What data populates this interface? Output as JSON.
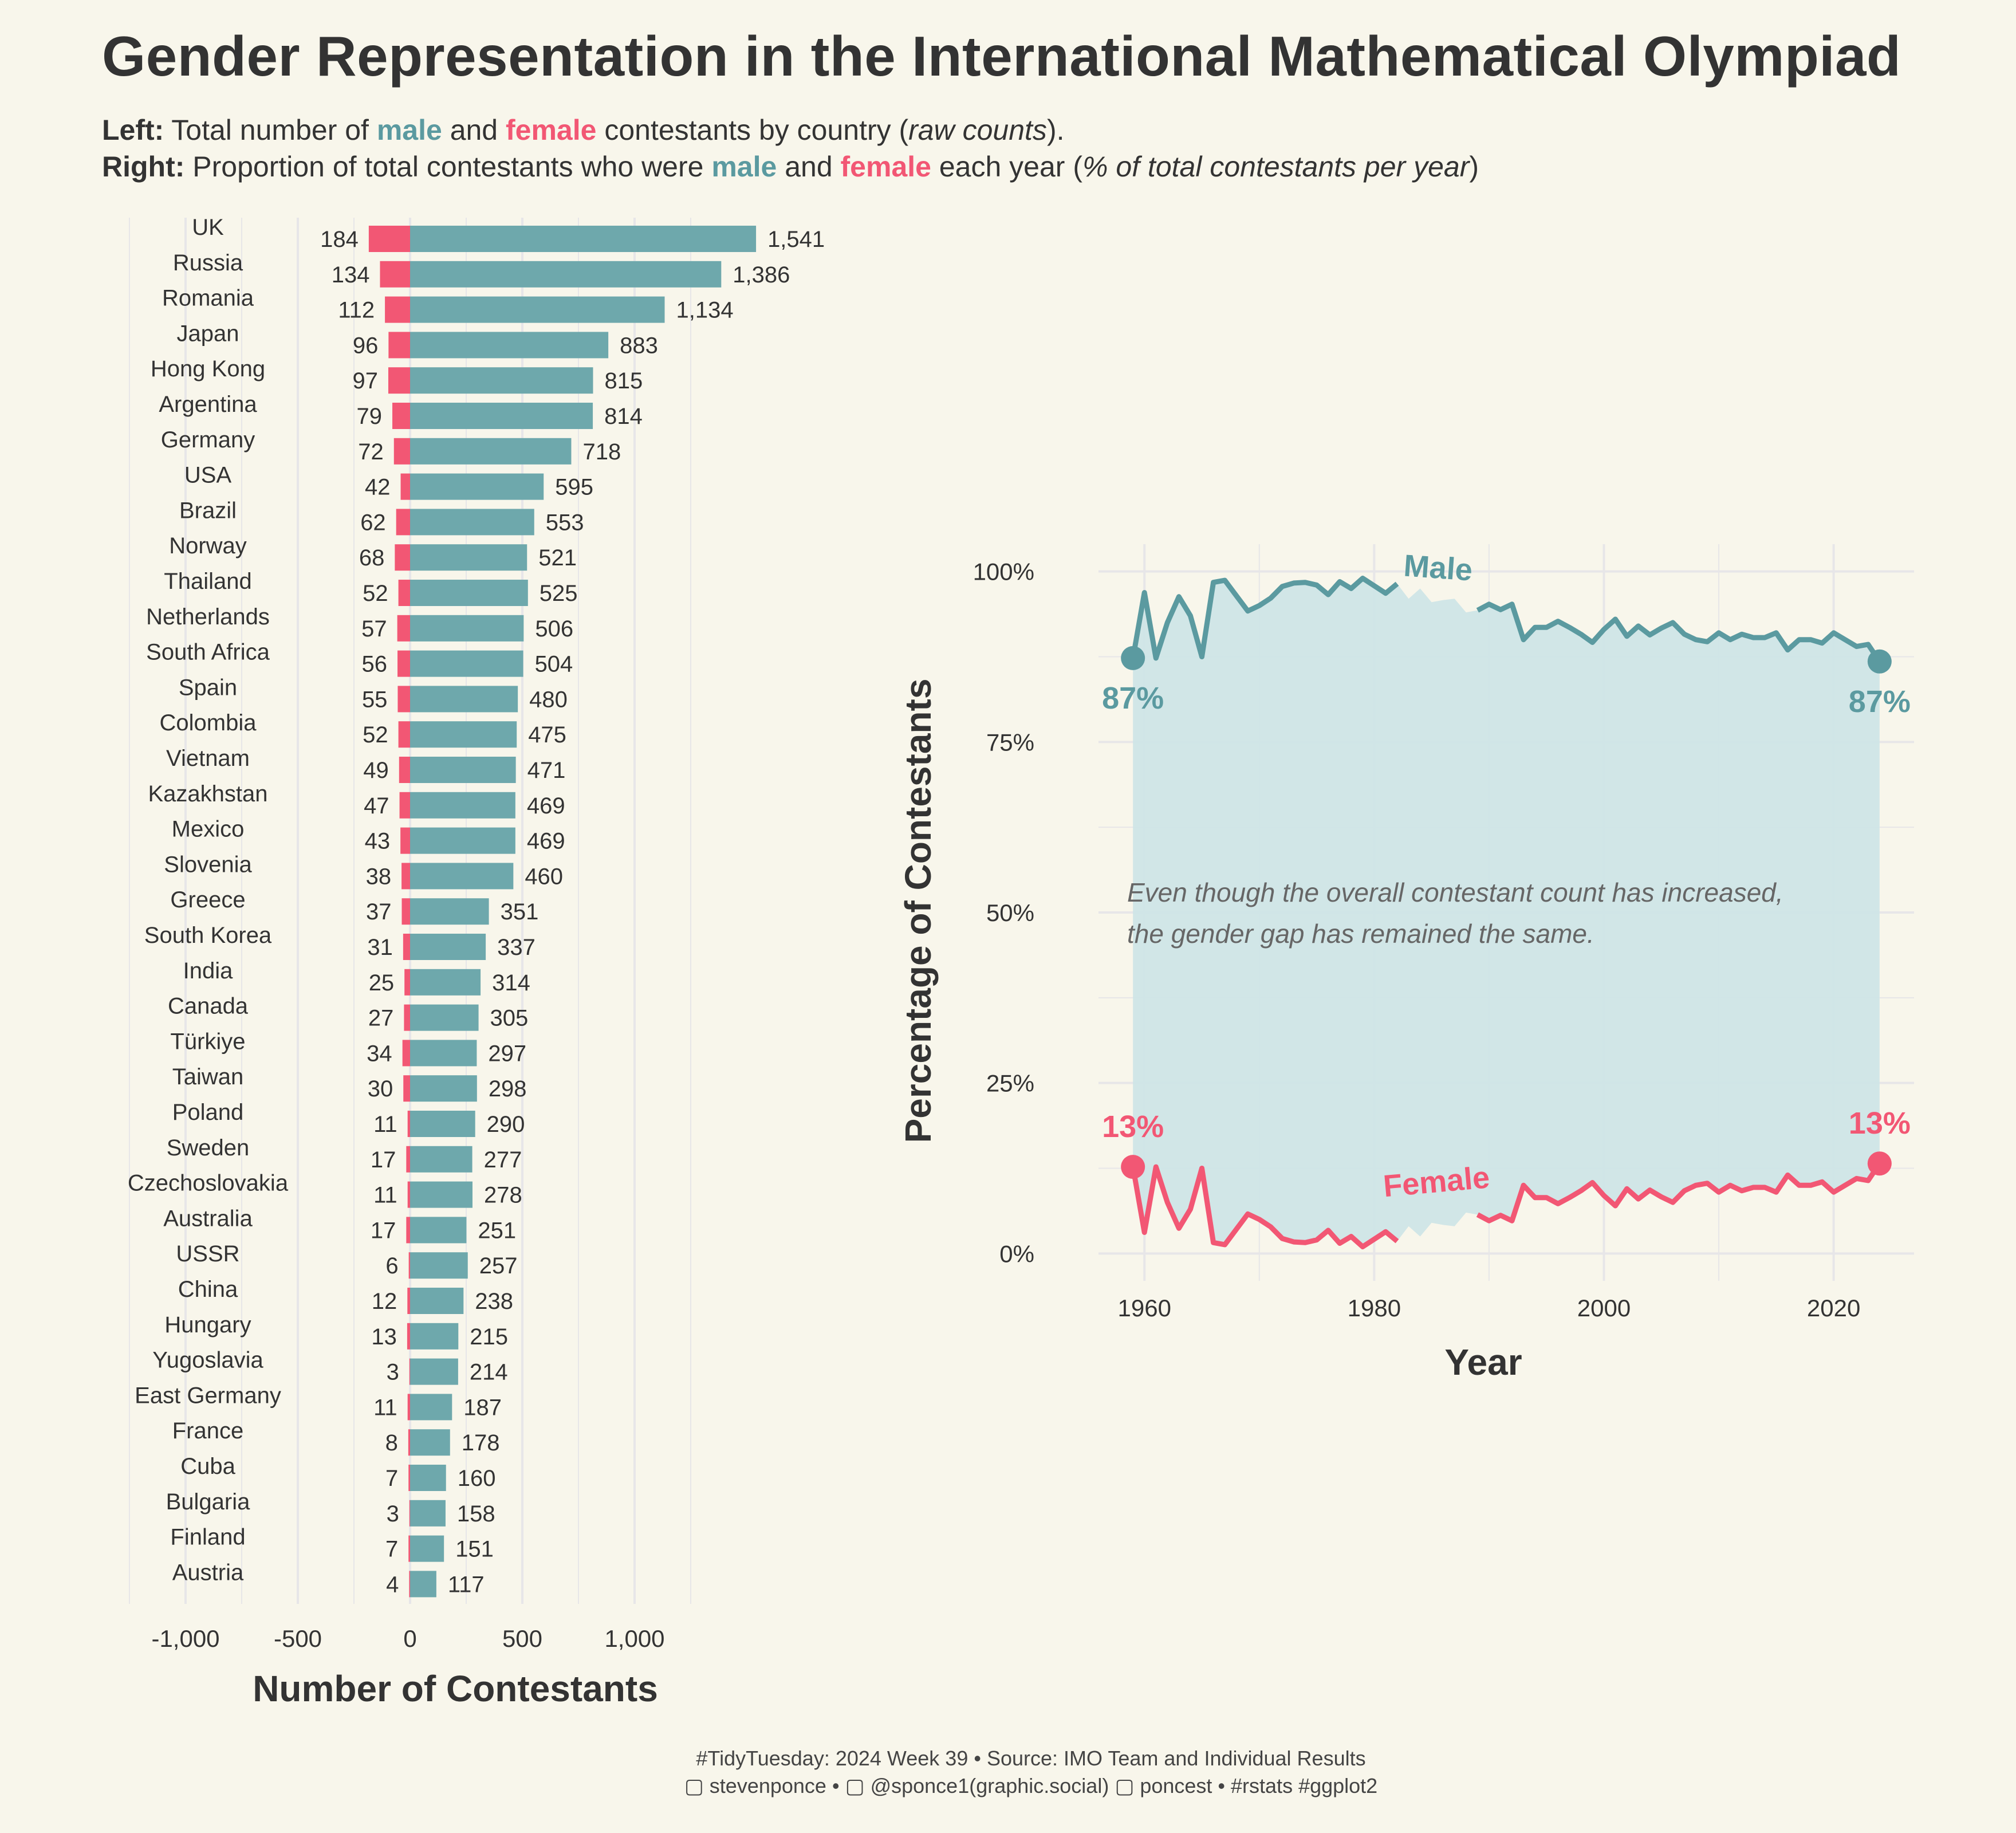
{
  "title": "Gender Representation in the International Mathematical Olympiad",
  "subtitle": {
    "left_label": "Left:",
    "left_pre": " Total number of ",
    "male_word": "male",
    "and_word": " and ",
    "female_word": "female",
    "left_mid": " contestants by country (",
    "left_italic": "raw counts",
    "left_end": ").",
    "right_label": "Right:",
    "right_pre": " Proportion of total contestants who were ",
    "right_mid": " each year (",
    "right_italic": "% of total contestants per year",
    "right_end": ")"
  },
  "caption": {
    "line1": "#TidyTuesday: 2024 Week 39 • Source: IMO Team and Individual Results",
    "line2": "▢ stevenponce • ▢ @sponce1(graphic.social) ▢ poncest • #rstats #ggplot2"
  },
  "colors": {
    "male": "#5b9aa0",
    "male_bar": "#6ea8ac",
    "female": "#f25774",
    "ribbon": "#cfe5e7",
    "grid": "#e7e6e8",
    "background": "#f8f6eb"
  },
  "chart_data": [
    {
      "type": "bar",
      "orientation": "horizontal diverging",
      "xlabel": "Number of Contestants",
      "x_ticks": [
        -1000,
        -500,
        0,
        500,
        1000
      ],
      "x_tick_labels": [
        "-1,000",
        "-500",
        "0",
        "500",
        "1,000"
      ],
      "xlim": [
        -1250,
        1500
      ],
      "categories": [
        "UK",
        "Russia",
        "Romania",
        "Japan",
        "Hong Kong",
        "Argentina",
        "Germany",
        "USA",
        "Brazil",
        "Norway",
        "Thailand",
        "Netherlands",
        "South Africa",
        "Spain",
        "Colombia",
        "Vietnam",
        "Kazakhstan",
        "Mexico",
        "Slovenia",
        "Greece",
        "South Korea",
        "India",
        "Canada",
        "Türkiye",
        "Taiwan",
        "Poland",
        "Sweden",
        "Czechoslovakia",
        "Australia",
        "USSR",
        "China",
        "Hungary",
        "Yugoslavia",
        "East Germany",
        "France",
        "Cuba",
        "Bulgaria",
        "Finland",
        "Austria"
      ],
      "series": [
        {
          "name": "male",
          "values": [
            1541,
            1386,
            1134,
            883,
            815,
            814,
            718,
            595,
            553,
            521,
            525,
            506,
            504,
            480,
            475,
            471,
            469,
            469,
            460,
            351,
            337,
            314,
            305,
            297,
            298,
            290,
            277,
            278,
            251,
            257,
            238,
            215,
            214,
            187,
            178,
            160,
            158,
            151,
            117
          ],
          "labels": [
            "1,541",
            "1,386",
            "1,134",
            "883",
            "815",
            "814",
            "718",
            "595",
            "553",
            "521",
            "525",
            "506",
            "504",
            "480",
            "475",
            "471",
            "469",
            "469",
            "460",
            "351",
            "337",
            "314",
            "305",
            "297",
            "298",
            "290",
            "277",
            "278",
            "251",
            "257",
            "238",
            "215",
            "214",
            "187",
            "178",
            "160",
            "158",
            "151",
            "117"
          ]
        },
        {
          "name": "female",
          "values": [
            184,
            134,
            112,
            96,
            97,
            79,
            72,
            42,
            62,
            68,
            52,
            57,
            56,
            55,
            52,
            49,
            47,
            43,
            38,
            37,
            31,
            25,
            27,
            34,
            30,
            11,
            17,
            11,
            17,
            6,
            12,
            13,
            3,
            11,
            8,
            7,
            3,
            7,
            4
          ],
          "labels": [
            "184",
            "134",
            "112",
            "96",
            "97",
            "79",
            "72",
            "42",
            "62",
            "68",
            "52",
            "57",
            "56",
            "55",
            "52",
            "49",
            "47",
            "43",
            "38",
            "37",
            "31",
            "25",
            "27",
            "34",
            "30",
            "11",
            "17",
            "11",
            "17",
            "6",
            "12",
            "13",
            "3",
            "11",
            "8",
            "7",
            "3",
            "7",
            "4"
          ]
        }
      ]
    },
    {
      "type": "line",
      "xlabel": "Year",
      "ylabel": "Percentage of Contestants",
      "xlim": [
        1956,
        2027
      ],
      "ylim": [
        -0.04,
        1.04
      ],
      "x_ticks": [
        1960,
        1980,
        2000,
        2020
      ],
      "x_tick_labels": [
        "1960",
        "1980",
        "2000",
        "2020"
      ],
      "y_ticks": [
        0,
        0.25,
        0.5,
        0.75,
        1
      ],
      "y_tick_labels": [
        "0%",
        "25%",
        "50%",
        "75%",
        "100%"
      ],
      "x": [
        1959,
        1960,
        1961,
        1962,
        1963,
        1964,
        1965,
        1966,
        1967,
        1969,
        1970,
        1971,
        1972,
        1973,
        1974,
        1975,
        1976,
        1977,
        1978,
        1979,
        1981,
        1982,
        1983,
        1984,
        1985,
        1986,
        1987,
        1988,
        1989,
        1990,
        1991,
        1992,
        1993,
        1994,
        1995,
        1996,
        1997,
        1998,
        1999,
        2000,
        2001,
        2002,
        2003,
        2004,
        2005,
        2006,
        2007,
        2008,
        2009,
        2010,
        2011,
        2012,
        2013,
        2014,
        2015,
        2016,
        2017,
        2018,
        2019,
        2020,
        2021,
        2022,
        2023,
        2024
      ],
      "series": [
        {
          "name": "Male",
          "label": "Male",
          "values": [
            0.873,
            0.969,
            0.873,
            0.925,
            0.963,
            0.935,
            0.875,
            0.984,
            0.987,
            0.942,
            0.95,
            0.961,
            0.978,
            0.983,
            0.984,
            0.98,
            0.966,
            0.985,
            0.975,
            0.99,
            0.968,
            0.982,
            0.96,
            0.975,
            0.955,
            0.958,
            0.96,
            0.94,
            0.943,
            0.952,
            0.944,
            0.952,
            0.9,
            0.918,
            0.918,
            0.927,
            0.918,
            0.908,
            0.896,
            0.915,
            0.93,
            0.905,
            0.92,
            0.907,
            0.917,
            0.925,
            0.908,
            0.9,
            0.897,
            0.91,
            0.9,
            0.908,
            0.903,
            0.903,
            0.91,
            0.885,
            0.9,
            0.9,
            0.895,
            0.91,
            0.9,
            0.89,
            0.893,
            0.868
          ]
        },
        {
          "name": "Female",
          "label": "Female",
          "values": [
            0.127,
            0.031,
            0.127,
            0.075,
            0.037,
            0.065,
            0.125,
            0.016,
            0.013,
            0.058,
            0.05,
            0.039,
            0.022,
            0.017,
            0.016,
            0.02,
            0.034,
            0.015,
            0.025,
            0.01,
            0.032,
            0.018,
            0.04,
            0.025,
            0.045,
            0.042,
            0.04,
            0.06,
            0.057,
            0.048,
            0.056,
            0.048,
            0.1,
            0.082,
            0.082,
            0.073,
            0.082,
            0.092,
            0.104,
            0.085,
            0.07,
            0.095,
            0.08,
            0.093,
            0.083,
            0.075,
            0.092,
            0.1,
            0.103,
            0.09,
            0.1,
            0.092,
            0.097,
            0.097,
            0.09,
            0.115,
            0.1,
            0.1,
            0.105,
            0.09,
            0.1,
            0.11,
            0.107,
            0.132
          ]
        }
      ],
      "annotations": {
        "male_start": "87%",
        "male_end": "87%",
        "female_start": "13%",
        "female_end": "13%",
        "note_line1": "Even though the overall contestant count has increased,",
        "note_line2": " the gender gap has remained the same."
      }
    }
  ]
}
